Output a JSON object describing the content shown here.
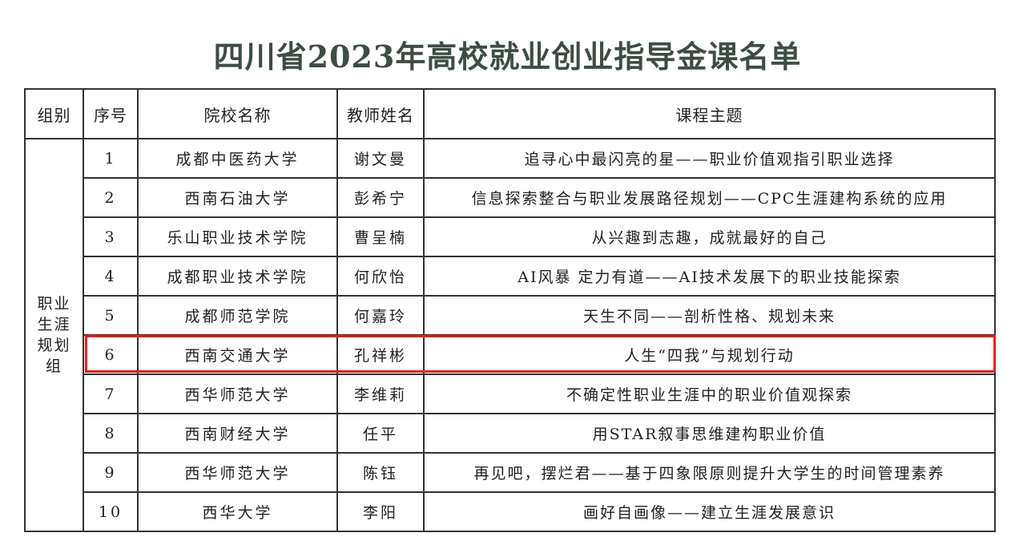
{
  "title": "四川省2023年高校就业创业指导金课名单",
  "headers": [
    "组别",
    "序号",
    "院校名称",
    "教师姓名",
    "课程主题"
  ],
  "group": "职业生涯规划组",
  "highlight_color": "#e8201a",
  "highlighted_row": 6,
  "rows": [
    {
      "no": "1",
      "school": "成都中医药大学",
      "teacher": "谢文曼",
      "topic": "追寻心中最闪亮的星——职业价值观指引职业选择"
    },
    {
      "no": "2",
      "school": "西南石油大学",
      "teacher": "彭希宁",
      "topic": "信息探索整合与职业发展路径规划——CPC生涯建构系统的应用"
    },
    {
      "no": "3",
      "school": "乐山职业技术学院",
      "teacher": "曹呈楠",
      "topic": "从兴趣到志趣，成就最好的自己"
    },
    {
      "no": "4",
      "school": "成都职业技术学院",
      "teacher": "何欣怡",
      "topic": "AI风暴 定力有道——AI技术发展下的职业技能探索"
    },
    {
      "no": "5",
      "school": "成都师范学院",
      "teacher": "何嘉玲",
      "topic": "天生不同——剖析性格、规划未来"
    },
    {
      "no": "6",
      "school": "西南交通大学",
      "teacher": "孔祥彬",
      "topic": "人生“四我”与规划行动"
    },
    {
      "no": "7",
      "school": "西华师范大学",
      "teacher": "李维莉",
      "topic": "不确定性职业生涯中的职业价值观探索"
    },
    {
      "no": "8",
      "school": "西南财经大学",
      "teacher": "任平",
      "topic": "用STAR叙事思维建构职业价值"
    },
    {
      "no": "9",
      "school": "西华师范大学",
      "teacher": "陈钰",
      "topic": "再见吧，摆烂君——基于四象限原则提升大学生的时间管理素养"
    },
    {
      "no": "10",
      "school": "西华大学",
      "teacher": "李阳",
      "topic": "画好自画像——建立生涯发展意识"
    }
  ]
}
